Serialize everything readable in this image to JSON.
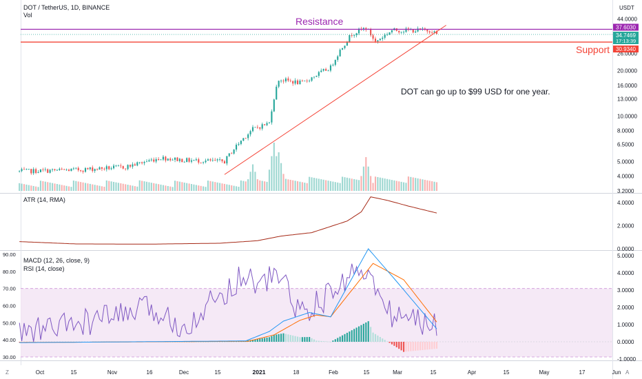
{
  "header": {
    "symbol_title": "DOT / TetherUS, 1D, BINANCE",
    "volume_label": "Vol",
    "currency": "USDT"
  },
  "annotations": {
    "resistance_label": "Resistance",
    "support_label": "Support",
    "note": "DOT can go up to $99 USD for one year."
  },
  "price_badges": {
    "resistance_value": "37.6030",
    "last_price": "34.7469",
    "countdown": "17:13:39",
    "support_value": "30.9340"
  },
  "atr_title": "ATR (14, RMA)",
  "macd_title": "MACD (12, 26, close, 9)",
  "rsi_title": "RSI (14, close)",
  "corner_left": "Z",
  "corner_right": "A",
  "colors": {
    "up": "#26a69a",
    "down": "#ef5350",
    "resistance": "#9c27b0",
    "support": "#f44336",
    "atr": "#a52714",
    "macd": "#2196f3",
    "signal": "#ff6d00",
    "rsi": "#7e57c2",
    "rsi_band": "#f3e5f5"
  },
  "chart_data": [
    {
      "type": "candlestick",
      "title": "DOT / TetherUS, 1D, BINANCE",
      "y_scale": "log",
      "y_ticks": [
        "44.0000",
        "26.0000",
        "20.0000",
        "16.0000",
        "13.0000",
        "10.0000",
        "8.0000",
        "6.5000",
        "5.0000",
        "4.0000",
        "3.2000"
      ],
      "anchors": [
        {
          "date": "2020-09-26",
          "close": 4.3
        },
        {
          "date": "2020-10-20",
          "close": 4.4
        },
        {
          "date": "2020-11-10",
          "close": 4.6
        },
        {
          "date": "2020-11-25",
          "close": 5.3
        },
        {
          "date": "2020-12-05",
          "close": 5.1
        },
        {
          "date": "2020-12-22",
          "close": 5.0
        },
        {
          "date": "2021-01-03",
          "close": 8.2
        },
        {
          "date": "2021-01-10",
          "close": 9.0
        },
        {
          "date": "2021-01-14",
          "close": 17.5
        },
        {
          "date": "2021-01-24",
          "close": 16.5
        },
        {
          "date": "2021-02-05",
          "close": 21.0
        },
        {
          "date": "2021-02-14",
          "close": 35.0
        },
        {
          "date": "2021-02-20",
          "close": 38.5
        },
        {
          "date": "2021-02-24",
          "close": 31.0
        },
        {
          "date": "2021-03-03",
          "close": 37.0
        },
        {
          "date": "2021-03-20",
          "close": 37.0
        },
        {
          "date": "2021-03-22",
          "close": 34.7469
        }
      ],
      "resistance": 37.603,
      "support": 30.934,
      "trendline": [
        {
          "date": "2020-12-22",
          "value": 4.1
        },
        {
          "date": "2021-03-26",
          "value": 40.0
        }
      ],
      "volume_peaks": [
        {
          "date": "2021-01-03",
          "level": 0.55
        },
        {
          "date": "2021-01-12",
          "level": 1.0
        },
        {
          "date": "2021-01-14",
          "level": 0.8
        },
        {
          "date": "2021-02-20",
          "level": 0.7
        }
      ]
    },
    {
      "type": "line",
      "title": "ATR (14, RMA)",
      "y_ticks": [
        "4.0000",
        "2.0000",
        "0.0000"
      ],
      "ylim": [
        0,
        4.6
      ],
      "anchors": [
        {
          "date": "2020-09-26",
          "value": 0.62
        },
        {
          "date": "2020-10-20",
          "value": 0.42
        },
        {
          "date": "2020-11-20",
          "value": 0.4
        },
        {
          "date": "2020-12-20",
          "value": 0.48
        },
        {
          "date": "2021-01-05",
          "value": 0.7
        },
        {
          "date": "2021-01-15",
          "value": 1.1
        },
        {
          "date": "2021-01-28",
          "value": 1.4
        },
        {
          "date": "2021-02-12",
          "value": 2.4
        },
        {
          "date": "2021-02-18",
          "value": 3.2
        },
        {
          "date": "2021-02-22",
          "value": 4.5
        },
        {
          "date": "2021-03-01",
          "value": 4.2
        },
        {
          "date": "2021-03-10",
          "value": 3.7
        },
        {
          "date": "2021-03-22",
          "value": 3.1
        }
      ]
    },
    {
      "type": "line",
      "title": "MACD (12, 26, close, 9)",
      "y_ticks": [
        "5.0000",
        "4.0000",
        "3.0000",
        "2.0000",
        "1.0000",
        "0.0000",
        "-1.0000"
      ],
      "series": [
        {
          "name": "MACD",
          "anchors": [
            {
              "date": "2020-09-26",
              "value": -0.05
            },
            {
              "date": "2020-12-31",
              "value": 0.05
            },
            {
              "date": "2021-01-10",
              "value": 0.6
            },
            {
              "date": "2021-01-16",
              "value": 1.2
            },
            {
              "date": "2021-01-27",
              "value": 1.7
            },
            {
              "date": "2021-02-05",
              "value": 1.45
            },
            {
              "date": "2021-02-21",
              "value": 5.4
            },
            {
              "date": "2021-03-05",
              "value": 3.5
            },
            {
              "date": "2021-03-22",
              "value": 0.75
            }
          ]
        },
        {
          "name": "Signal",
          "anchors": [
            {
              "date": "2020-09-26",
              "value": -0.04
            },
            {
              "date": "2021-01-01",
              "value": 0.03
            },
            {
              "date": "2021-01-12",
              "value": 0.4
            },
            {
              "date": "2021-01-23",
              "value": 1.25
            },
            {
              "date": "2021-01-30",
              "value": 1.55
            },
            {
              "date": "2021-02-05",
              "value": 1.45
            },
            {
              "date": "2021-02-23",
              "value": 4.55
            },
            {
              "date": "2021-03-08",
              "value": 3.6
            },
            {
              "date": "2021-03-22",
              "value": 1.15
            }
          ]
        }
      ]
    },
    {
      "type": "line",
      "title": "RSI (14, close)",
      "y_ticks": [
        "90.00",
        "80.00",
        "70.00",
        "60.00",
        "50.00",
        "40.00",
        "30.00"
      ],
      "ylim": [
        27,
        93
      ],
      "band": [
        30,
        70
      ],
      "anchors": [
        {
          "date": "2020-09-26",
          "value": 44
        },
        {
          "date": "2020-10-20",
          "value": 49
        },
        {
          "date": "2020-11-20",
          "value": 58
        },
        {
          "date": "2020-12-05",
          "value": 48
        },
        {
          "date": "2020-12-31",
          "value": 79
        },
        {
          "date": "2021-01-06",
          "value": 71
        },
        {
          "date": "2021-01-11",
          "value": 77
        },
        {
          "date": "2021-01-15",
          "value": 78
        },
        {
          "date": "2021-01-23",
          "value": 55
        },
        {
          "date": "2021-02-05",
          "value": 66
        },
        {
          "date": "2021-02-18",
          "value": 85
        },
        {
          "date": "2021-03-01",
          "value": 56
        },
        {
          "date": "2021-03-22",
          "value": 48
        }
      ]
    }
  ],
  "x_axis_ticks": [
    "Oct",
    "15",
    "Nov",
    "16",
    "Dec",
    "15",
    "2021",
    "18",
    "Feb",
    "15",
    "Mar",
    "15",
    "Apr",
    "15",
    "May",
    "17",
    "Jun"
  ]
}
